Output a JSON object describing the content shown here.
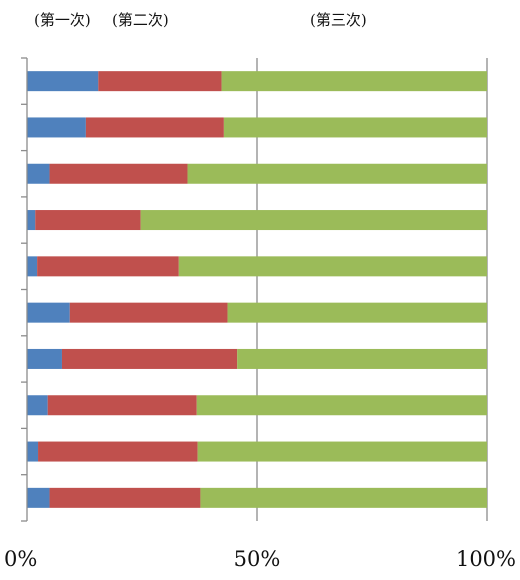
{
  "chart_data": {
    "type": "bar",
    "orientation": "horizontal",
    "stacked": "percent",
    "categories": [
      "",
      "",
      "",
      "",
      "",
      "",
      "",
      "",
      "",
      ""
    ],
    "series": [
      {
        "name": "(第一次)",
        "color": "#4f81bd",
        "values": [
          15.5,
          12.8,
          4.9,
          1.8,
          2.2,
          9.3,
          7.6,
          4.5,
          2.4,
          4.9
        ]
      },
      {
        "name": "(第二次)",
        "color": "#c0504d",
        "values": [
          26.8,
          30.0,
          30.0,
          22.9,
          30.8,
          34.3,
          38.1,
          32.4,
          34.7,
          32.8
        ]
      },
      {
        "name": "(第三次)",
        "color": "#9bbb59",
        "values": [
          57.7,
          57.2,
          65.1,
          75.3,
          67.0,
          56.4,
          54.3,
          63.1,
          62.9,
          62.3
        ]
      }
    ],
    "xlim": [
      0,
      100
    ],
    "x_ticks": [
      "0%",
      "50%",
      "100%"
    ],
    "gridlines": "vertical at 50% and 100%",
    "legend_position": "top"
  }
}
